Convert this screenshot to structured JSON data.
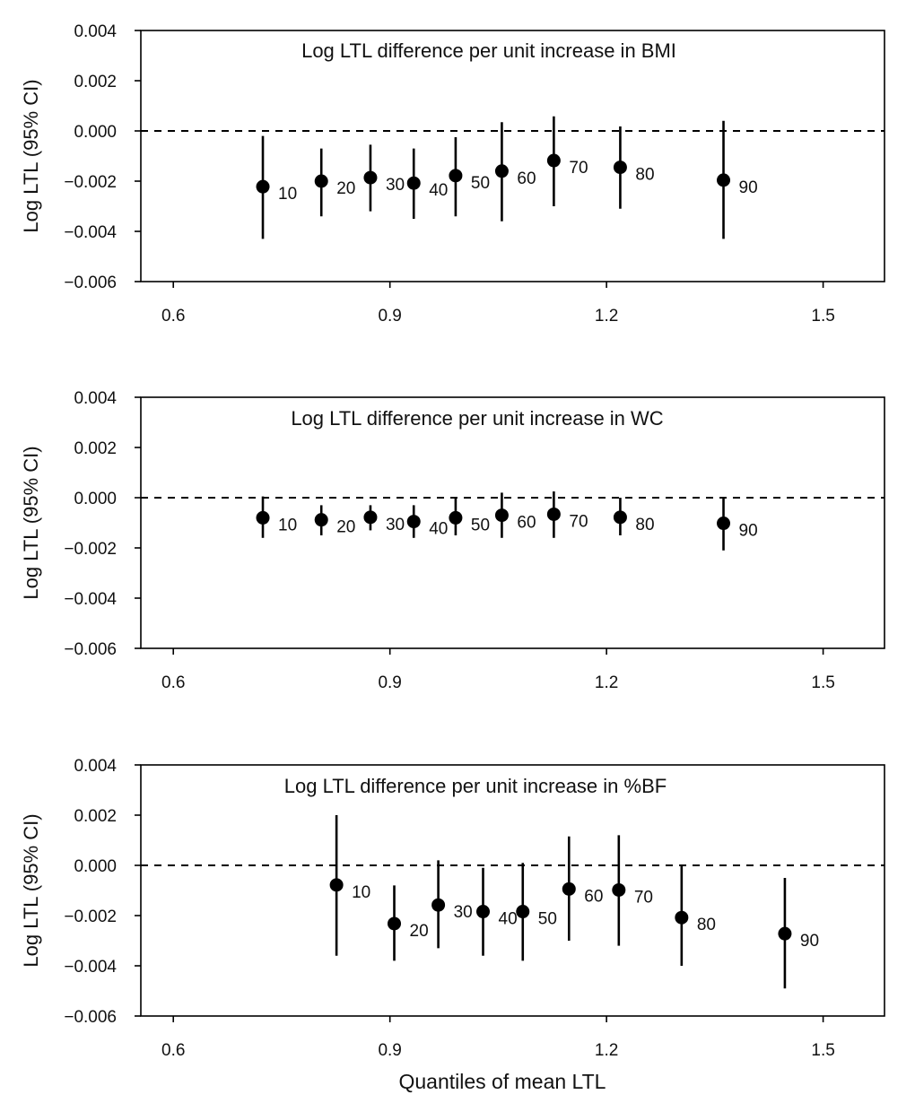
{
  "chart_data": [
    {
      "type": "scatter",
      "title": "Log LTL difference per unit increase in BMI",
      "ylabel": "Log LTL (95% CI)",
      "xlabel": "",
      "xlim": [
        0.555,
        1.585
      ],
      "ylim": [
        -0.006,
        0.004
      ],
      "xticks": [
        0.6,
        0.9,
        1.2,
        1.5
      ],
      "xtick_labels": [
        "0.6",
        "0.9",
        "1.2",
        "1.5"
      ],
      "yticks": [
        0.004,
        0.002,
        0.0,
        -0.002,
        -0.004,
        -0.006
      ],
      "ytick_labels": [
        "0.004",
        "0.002",
        "0.000",
        "−0.002",
        "−0.004",
        "−0.006"
      ],
      "reference_line": 0.0,
      "points": [
        {
          "label": "10",
          "x": 0.724,
          "y": -0.00222,
          "lo": -0.0043,
          "hi": -0.0002
        },
        {
          "label": "20",
          "x": 0.805,
          "y": -0.002,
          "lo": -0.0034,
          "hi": -0.0007
        },
        {
          "label": "30",
          "x": 0.873,
          "y": -0.00186,
          "lo": -0.0032,
          "hi": -0.00055
        },
        {
          "label": "40",
          "x": 0.933,
          "y": -0.00208,
          "lo": -0.0035,
          "hi": -0.0007
        },
        {
          "label": "50",
          "x": 0.991,
          "y": -0.00178,
          "lo": -0.0034,
          "hi": -0.00025
        },
        {
          "label": "60",
          "x": 1.055,
          "y": -0.0016,
          "lo": -0.0036,
          "hi": 0.00035
        },
        {
          "label": "70",
          "x": 1.127,
          "y": -0.00118,
          "lo": -0.003,
          "hi": 0.00058
        },
        {
          "label": "80",
          "x": 1.219,
          "y": -0.00145,
          "lo": -0.0031,
          "hi": 0.00018
        },
        {
          "label": "90",
          "x": 1.362,
          "y": -0.00196,
          "lo": -0.0043,
          "hi": 0.0004
        }
      ]
    },
    {
      "type": "scatter",
      "title": "Log LTL difference per unit increase in WC",
      "ylabel": "Log LTL (95% CI)",
      "xlabel": "",
      "xlim": [
        0.555,
        1.585
      ],
      "ylim": [
        -0.006,
        0.004
      ],
      "xticks": [
        0.6,
        0.9,
        1.2,
        1.5
      ],
      "xtick_labels": [
        "0.6",
        "0.9",
        "1.2",
        "1.5"
      ],
      "yticks": [
        0.004,
        0.002,
        0.0,
        -0.002,
        -0.004,
        -0.006
      ],
      "ytick_labels": [
        "0.004",
        "0.002",
        "0.000",
        "−0.002",
        "−0.004",
        "−0.006"
      ],
      "reference_line": 0.0,
      "points": [
        {
          "label": "10",
          "x": 0.724,
          "y": -0.0008,
          "lo": -0.0016,
          "hi": 5e-05
        },
        {
          "label": "20",
          "x": 0.805,
          "y": -0.00088,
          "lo": -0.0015,
          "hi": -0.0003
        },
        {
          "label": "30",
          "x": 0.873,
          "y": -0.00078,
          "lo": -0.0013,
          "hi": -0.0003
        },
        {
          "label": "40",
          "x": 0.933,
          "y": -0.00095,
          "lo": -0.0016,
          "hi": -0.0003
        },
        {
          "label": "50",
          "x": 0.991,
          "y": -0.0008,
          "lo": -0.0015,
          "hi": 0.0
        },
        {
          "label": "60",
          "x": 1.055,
          "y": -0.0007,
          "lo": -0.0016,
          "hi": 0.0002
        },
        {
          "label": "70",
          "x": 1.127,
          "y": -0.00066,
          "lo": -0.0016,
          "hi": 0.00025
        },
        {
          "label": "80",
          "x": 1.219,
          "y": -0.00078,
          "lo": -0.0015,
          "hi": 0.0
        },
        {
          "label": "90",
          "x": 1.362,
          "y": -0.00102,
          "lo": -0.0021,
          "hi": 0.0
        }
      ]
    },
    {
      "type": "scatter",
      "title": "Log LTL difference per unit increase in %BF",
      "ylabel": "Log LTL (95% CI)",
      "xlabel": "Quantiles of mean LTL",
      "xlim": [
        0.555,
        1.585
      ],
      "ylim": [
        -0.006,
        0.004
      ],
      "xticks": [
        0.6,
        0.9,
        1.2,
        1.5
      ],
      "xtick_labels": [
        "0.6",
        "0.9",
        "1.2",
        "1.5"
      ],
      "yticks": [
        0.004,
        0.002,
        0.0,
        -0.002,
        -0.004,
        -0.006
      ],
      "ytick_labels": [
        "0.004",
        "0.002",
        "0.000",
        "−0.002",
        "−0.004",
        "−0.006"
      ],
      "reference_line": 0.0,
      "points": [
        {
          "label": "10",
          "x": 0.826,
          "y": -0.00078,
          "lo": -0.0036,
          "hi": 0.002
        },
        {
          "label": "20",
          "x": 0.906,
          "y": -0.00232,
          "lo": -0.0038,
          "hi": -0.0008
        },
        {
          "label": "30",
          "x": 0.967,
          "y": -0.00158,
          "lo": -0.0033,
          "hi": 0.0002
        },
        {
          "label": "40",
          "x": 1.029,
          "y": -0.00184,
          "lo": -0.0036,
          "hi": -0.0001
        },
        {
          "label": "50",
          "x": 1.084,
          "y": -0.00184,
          "lo": -0.0038,
          "hi": 0.0001
        },
        {
          "label": "60",
          "x": 1.148,
          "y": -0.00094,
          "lo": -0.003,
          "hi": 0.00115
        },
        {
          "label": "70",
          "x": 1.217,
          "y": -0.00098,
          "lo": -0.0032,
          "hi": 0.0012
        },
        {
          "label": "80",
          "x": 1.304,
          "y": -0.00208,
          "lo": -0.004,
          "hi": 0.0
        },
        {
          "label": "90",
          "x": 1.447,
          "y": -0.00272,
          "lo": -0.0049,
          "hi": -0.0005
        }
      ]
    }
  ]
}
